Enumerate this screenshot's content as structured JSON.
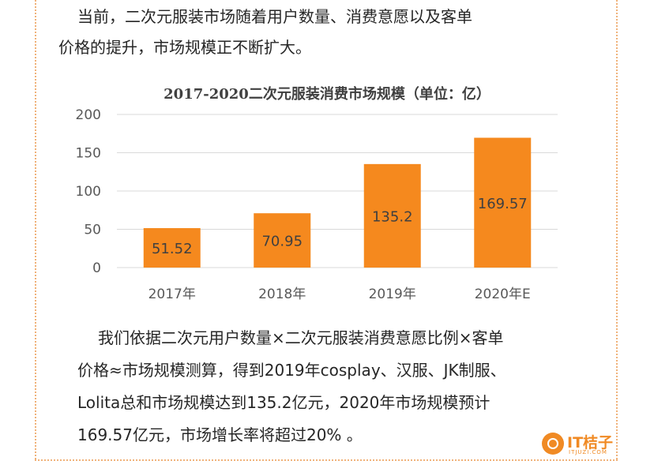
{
  "intro_lines": [
    "当前，二次元服装市场随着用户数量、消费意愿以及客单",
    "价格的提升，市场规模正不断扩大。"
  ],
  "chart_data": {
    "type": "bar",
    "title": "2017-2020二次元服装消费市场规模（单位：亿）",
    "categories": [
      "2017年",
      "2018年",
      "2019年",
      "2020年E"
    ],
    "values": [
      51.52,
      70.95,
      135.2,
      169.57
    ],
    "data_labels": [
      "51.52",
      "70.95",
      "135.2",
      "169.57"
    ],
    "y_ticks": [
      "0",
      "50",
      "100",
      "150",
      "200"
    ],
    "ylim": [
      0,
      200
    ],
    "bar_color": "#f5891e",
    "grid": true,
    "xlabel": "",
    "ylabel": ""
  },
  "body_lines": [
    "我们依据二次元用户数量×二次元服装消费意愿比例×客单",
    "价格≈市场规模测算，得到2019年cosplay、汉服、JK制服、",
    "Lolita总和市场规模达到135.2亿元，2020年市场规模预计",
    "169.57亿元，市场增长率将超过20% 。"
  ],
  "logo": {
    "text": "IT桔子",
    "subtext": "ITJUZI.COM",
    "icon": "orange-slice-icon",
    "color": "#f08a24"
  },
  "frame_color": "#f0b27a"
}
